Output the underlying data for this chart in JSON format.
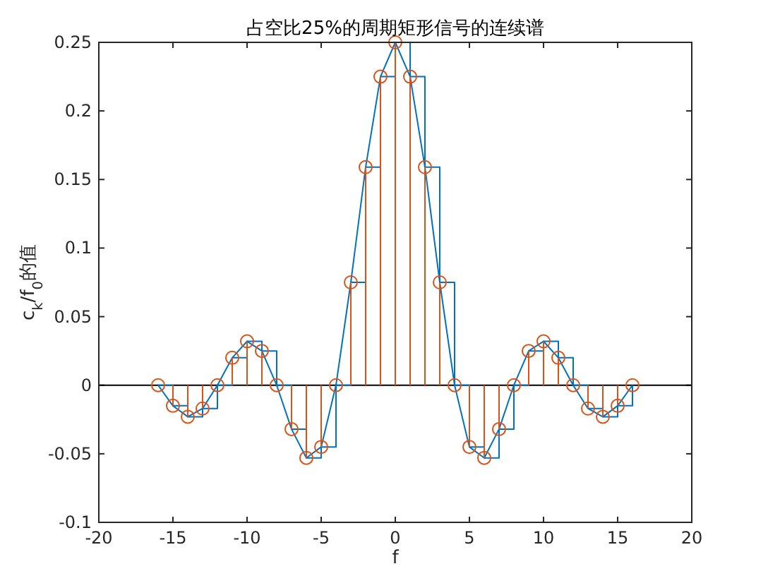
{
  "chart_data": {
    "type": "line",
    "title": "占空比25%的周期矩形信号的连续谱",
    "xlabel": "f",
    "ylabel": "c$_{k}$/f$_{0}$的值",
    "x": [
      -16,
      -15,
      -14,
      -13,
      -12,
      -11,
      -10,
      -9,
      -8,
      -7,
      -6,
      -5,
      -4,
      -3,
      -2,
      -1,
      0,
      1,
      2,
      3,
      4,
      5,
      6,
      7,
      8,
      9,
      10,
      11,
      12,
      13,
      14,
      15,
      16
    ],
    "series": [
      {
        "type": "step",
        "color": "#0072bd",
        "values": [
          0,
          -0.015,
          -0.023,
          -0.017,
          0,
          0.02,
          0.032,
          0.025,
          0,
          -0.032,
          -0.053,
          -0.045,
          0,
          0.075,
          0.159,
          0.225,
          0.25,
          0.225,
          0.159,
          0.075,
          0,
          -0.045,
          -0.053,
          -0.032,
          0,
          0.025,
          0.032,
          0.02,
          0,
          -0.017,
          -0.023,
          -0.015,
          0
        ]
      },
      {
        "color": "#0072bd",
        "values": [
          0,
          -0.015,
          -0.023,
          -0.017,
          0,
          0.02,
          0.032,
          0.025,
          0,
          -0.032,
          -0.053,
          -0.045,
          0,
          0.075,
          0.159,
          0.225,
          0.25,
          0.225,
          0.159,
          0.075,
          0,
          -0.045,
          -0.053,
          -0.032,
          0,
          0.025,
          0.032,
          0.02,
          0,
          -0.017,
          -0.023,
          -0.015,
          0
        ]
      },
      {
        "type": "lollipop",
        "color": "#d95319",
        "marker": "circle",
        "values": [
          0,
          -0.015,
          -0.023,
          -0.017,
          0,
          0.02,
          0.032,
          0.025,
          0,
          -0.032,
          -0.053,
          -0.045,
          0,
          0.075,
          0.159,
          0.225,
          0.25,
          0.225,
          0.159,
          0.075,
          0,
          -0.045,
          -0.053,
          -0.032,
          0,
          0.025,
          0.032,
          0.02,
          0,
          -0.017,
          -0.023,
          -0.015,
          0
        ]
      }
    ],
    "ref_lines": [
      {
        "axis": "y",
        "value": 0,
        "color": "#000000"
      }
    ],
    "xlim": [
      -20,
      20
    ],
    "xticks": [
      -20,
      -15,
      -10,
      -5,
      0,
      5,
      10,
      15,
      20
    ],
    "ylim": [
      -0.1,
      0.25
    ],
    "yticks": [
      -0.1,
      -0.05,
      0,
      0.05,
      0.1,
      0.15,
      0.2,
      0.25
    ]
  }
}
